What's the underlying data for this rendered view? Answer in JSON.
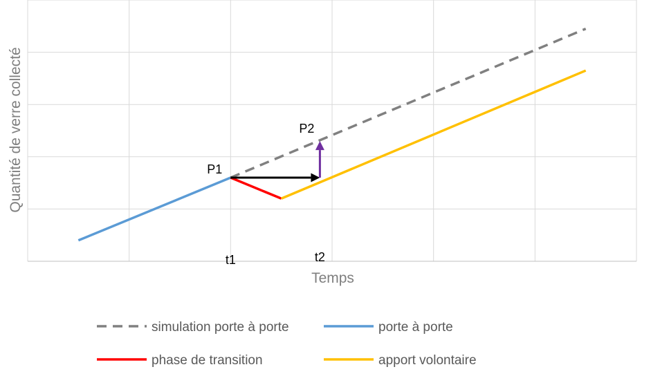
{
  "chart_data": {
    "type": "line",
    "xlabel": "Temps",
    "ylabel": "Quantité de verre collecté",
    "xlim": [
      0,
      6
    ],
    "ylim": [
      0,
      5
    ],
    "grid": true,
    "legend_position": "bottom",
    "series": [
      {
        "name": "simulation porte à porte",
        "color": "#808080",
        "dashed": true,
        "points": [
          [
            2.0,
            1.6
          ],
          [
            5.5,
            4.45
          ]
        ]
      },
      {
        "name": "porte à porte",
        "color": "#5b9bd5",
        "dashed": false,
        "points": [
          [
            0.5,
            0.4
          ],
          [
            2.0,
            1.6
          ]
        ]
      },
      {
        "name": "phase de transition",
        "color": "#ff0000",
        "dashed": false,
        "points": [
          [
            2.0,
            1.6
          ],
          [
            2.5,
            1.2
          ]
        ]
      },
      {
        "name": "apport volontaire",
        "color": "#ffc000",
        "dashed": false,
        "points": [
          [
            2.5,
            1.2
          ],
          [
            5.5,
            3.65
          ]
        ]
      }
    ],
    "annotations": [
      {
        "text": "P1",
        "x": 2.0,
        "y": 1.6
      },
      {
        "text": "P2",
        "x": 2.88,
        "y": 2.3
      },
      {
        "text": "t1",
        "x": 2.0,
        "y": 0
      },
      {
        "text": "t2",
        "x": 2.88,
        "y": 0
      }
    ],
    "arrows": [
      {
        "color": "#000000",
        "from": [
          2.0,
          1.6
        ],
        "to": [
          2.88,
          1.6
        ]
      },
      {
        "color": "#7030a0",
        "from": [
          2.88,
          1.6
        ],
        "to": [
          2.88,
          2.3
        ]
      }
    ]
  }
}
